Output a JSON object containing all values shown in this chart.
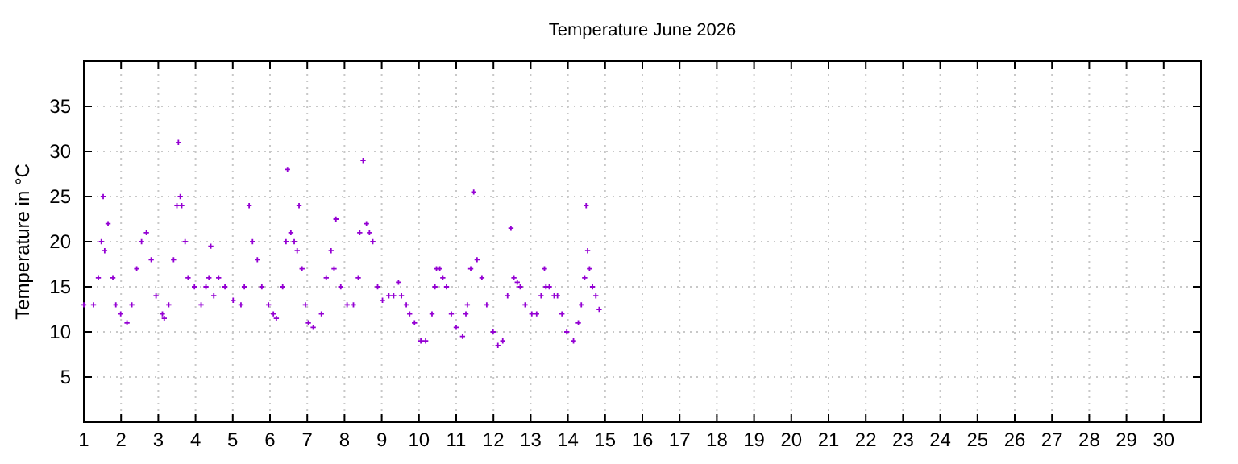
{
  "chart_data": {
    "type": "scatter",
    "title": "Temperature June 2026",
    "ylabel": "Temperature in °C",
    "xlim": [
      1,
      31
    ],
    "xticks": [
      1,
      2,
      3,
      4,
      5,
      6,
      7,
      8,
      9,
      10,
      11,
      12,
      13,
      14,
      15,
      16,
      17,
      18,
      19,
      20,
      21,
      22,
      23,
      24,
      25,
      26,
      27,
      28,
      29,
      30
    ],
    "ylim": [
      0,
      40
    ],
    "yticks": [
      5,
      10,
      15,
      20,
      25,
      30,
      35
    ],
    "grid": true,
    "marker": "cross",
    "series": [
      {
        "color": "#9400d3",
        "x": [
          1.0,
          1.26,
          1.39,
          1.47,
          1.52,
          1.56,
          1.65,
          1.78,
          1.86,
          1.99,
          2.16,
          2.29,
          2.42,
          2.55,
          2.68,
          2.81,
          2.94,
          3.11,
          3.16,
          3.28,
          3.41,
          3.5,
          3.54,
          3.59,
          3.63,
          3.72,
          3.8,
          3.97,
          4.15,
          4.28,
          4.36,
          4.41,
          4.49,
          4.62,
          4.79,
          5.01,
          5.22,
          5.31,
          5.44,
          5.53,
          5.66,
          5.78,
          5.96,
          6.09,
          6.17,
          6.34,
          6.43,
          6.47,
          6.56,
          6.65,
          6.73,
          6.78,
          6.86,
          6.95,
          7.03,
          7.16,
          7.38,
          7.51,
          7.64,
          7.72,
          7.77,
          7.9,
          8.07,
          8.24,
          8.37,
          8.41,
          8.5,
          8.59,
          8.67,
          8.76,
          8.89,
          9.02,
          9.19,
          9.32,
          9.45,
          9.53,
          9.66,
          9.75,
          9.88,
          10.05,
          10.18,
          10.35,
          10.43,
          10.47,
          10.56,
          10.64,
          10.74,
          10.87,
          11.0,
          11.17,
          11.26,
          11.3,
          11.39,
          11.47,
          11.56,
          11.69,
          11.82,
          11.99,
          12.12,
          12.25,
          12.38,
          12.47,
          12.55,
          12.64,
          12.72,
          12.85,
          13.03,
          13.16,
          13.28,
          13.37,
          13.41,
          13.5,
          13.63,
          13.72,
          13.84,
          13.97,
          14.15,
          14.28,
          14.36,
          14.45,
          14.49,
          14.53,
          14.58,
          14.66,
          14.75,
          14.84
        ],
        "values": [
          13,
          13,
          16,
          20,
          25,
          19,
          22,
          16,
          13,
          12,
          11,
          13,
          17,
          20,
          21,
          18,
          14,
          12,
          11.5,
          13,
          18,
          24,
          31,
          25,
          24,
          20,
          16,
          15,
          13,
          15,
          16,
          19.5,
          14,
          16,
          15,
          13.5,
          13,
          15,
          24,
          20,
          18,
          15,
          13,
          12,
          11.5,
          15,
          20,
          28,
          21,
          20,
          19,
          24,
          17,
          13,
          11,
          10.5,
          12,
          16,
          19,
          17,
          22.5,
          15,
          13,
          13,
          16,
          21,
          29,
          22,
          21,
          20,
          15,
          13.5,
          14,
          14,
          15.5,
          14,
          13,
          12,
          11,
          9,
          9,
          12,
          15,
          17,
          17,
          16,
          15,
          12,
          10.5,
          9.5,
          12,
          13,
          17,
          25.5,
          18,
          16,
          13,
          10,
          8.5,
          9,
          14,
          21.5,
          16,
          15.5,
          15,
          13,
          12,
          12,
          14,
          17,
          15,
          15,
          14,
          14,
          12,
          10,
          9,
          11,
          13,
          16,
          24,
          19,
          17,
          15,
          14,
          12.5
        ]
      }
    ]
  }
}
